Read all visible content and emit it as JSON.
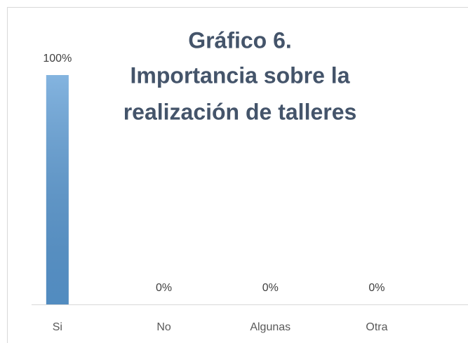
{
  "chart_data": {
    "type": "bar",
    "title": [
      "Gráfico 6.",
      "Importancia sobre la",
      "realización de talleres"
    ],
    "categories": [
      "Si",
      "No",
      "Algunas",
      "Otra"
    ],
    "values": [
      100,
      0,
      0,
      0
    ],
    "value_labels": [
      "100%",
      "0%",
      "0%",
      "0%"
    ],
    "color": "#5b9bd5",
    "ylim": [
      0,
      100
    ]
  }
}
